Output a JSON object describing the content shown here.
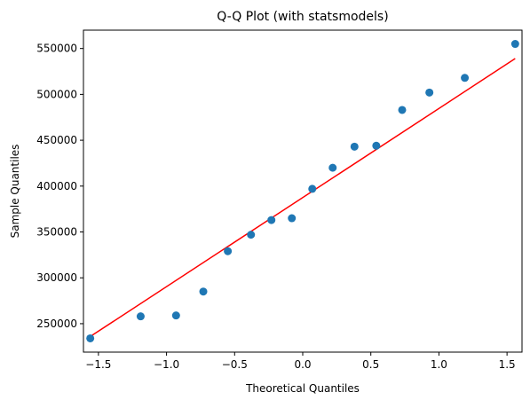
{
  "chart_data": {
    "type": "scatter",
    "title": "Q-Q Plot (with statsmodels)",
    "xlabel": "Theoretical Quantiles",
    "ylabel": "Sample Quantiles",
    "xlim": [
      -1.61,
      1.61
    ],
    "ylim": [
      219000,
      570000
    ],
    "xticks": [
      -1.5,
      -1.0,
      -0.5,
      0.0,
      0.5,
      1.0,
      1.5
    ],
    "xtick_labels": [
      "−1.5",
      "−1.0",
      "−0.5",
      "0.0",
      "0.5",
      "1.0",
      "1.5"
    ],
    "yticks": [
      250000,
      300000,
      350000,
      400000,
      450000,
      500000,
      550000
    ],
    "ytick_labels": [
      "250000",
      "300000",
      "350000",
      "400000",
      "450000",
      "500000",
      "550000"
    ],
    "grid": false,
    "series": [
      {
        "kind": "points",
        "color": "#1f77b4",
        "x": [
          -1.56,
          -1.19,
          -0.93,
          -0.73,
          -0.55,
          -0.38,
          -0.23,
          -0.08,
          0.07,
          0.22,
          0.38,
          0.54,
          0.73,
          0.93,
          1.19,
          1.56
        ],
        "y": [
          234000,
          258000,
          259000,
          285000,
          329000,
          347000,
          363000,
          365000,
          397000,
          420000,
          443000,
          444000,
          483000,
          502000,
          518000,
          555000
        ]
      },
      {
        "kind": "line",
        "color": "#ff0000",
        "x": [
          -1.56,
          1.56
        ],
        "y": [
          236000,
          539000
        ]
      }
    ]
  }
}
